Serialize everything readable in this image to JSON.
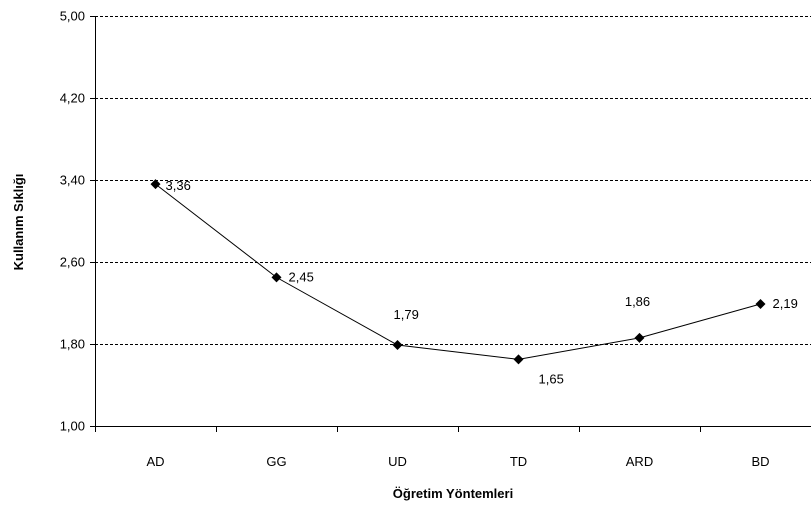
{
  "chart_data": {
    "type": "line",
    "categories": [
      "AD",
      "GG",
      "UD",
      "TD",
      "ARD",
      "BD"
    ],
    "series": [
      {
        "values": [
          3.36,
          2.45,
          1.79,
          1.65,
          1.86,
          2.19
        ],
        "data_labels": [
          "3,36",
          "2,45",
          "1,79",
          "1,65",
          "1,86",
          "2,19"
        ],
        "color": "#000000",
        "marker": "diamond"
      }
    ],
    "xlabel": "Öğretim Yöntemleri",
    "ylabel": "Kullanım Sıklığı",
    "ylim": [
      1.0,
      5.0
    ],
    "yticks": [
      1.0,
      1.8,
      2.6,
      3.4,
      4.2,
      5.0
    ],
    "ytick_labels": [
      "1,00",
      "1,80",
      "2,60",
      "3,40",
      "4,20",
      "5,00"
    ],
    "grid": "horizontal dashed",
    "legend": "none",
    "colors": {
      "line": "#000000",
      "grid": "#000000",
      "axis": "#000000",
      "background": "#ffffff"
    }
  }
}
